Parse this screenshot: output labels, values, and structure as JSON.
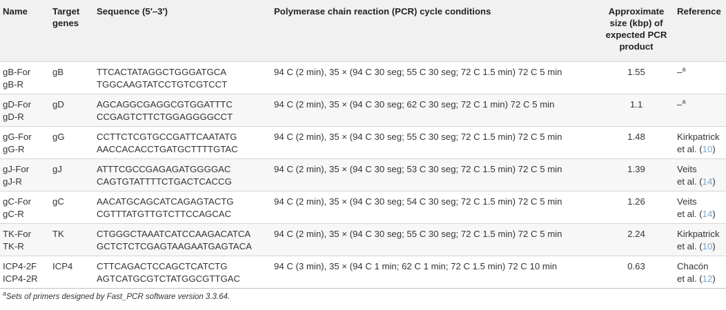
{
  "headers": [
    "Name",
    "Target genes",
    "Sequence (5′–3′)",
    "Polymerase chain reaction (PCR) cycle conditions",
    "Approximate size (kbp) of expected PCR product",
    "Reference"
  ],
  "rows": [
    {
      "names": [
        "gB-For",
        "gB-R"
      ],
      "gene": "gB",
      "seqs": [
        "TTCACTATAGGCTGGGATGCA",
        "TGGCAAGTATCCTGTCGTCCT"
      ],
      "cond": "94 C (2 min), 35 × (94 C 30 seg; 55 C 30 seg; 72 C 1.5 min) 72 C 5 min",
      "size": "1.55",
      "ref_text": "–",
      "ref_sup": "a",
      "ref_line1": "",
      "ref_line2": "",
      "ref_num": ""
    },
    {
      "names": [
        "gD-For",
        "gD-R"
      ],
      "gene": "gD",
      "seqs": [
        "AGCAGGCGAGGCGTGGATTTC",
        "CCGAGTCTTCTGGAGGGGCCT"
      ],
      "cond": "94 C (2 min), 35 × (94 C 30 seg; 62 C 30 seg; 72 C 1 min) 72 C 5 min",
      "size": "1.1",
      "ref_text": "–",
      "ref_sup": "a",
      "ref_line1": "",
      "ref_line2": "",
      "ref_num": ""
    },
    {
      "names": [
        "gG-For",
        "gG-R"
      ],
      "gene": "gG",
      "seqs": [
        "CCTTCTCGTGCCGATTCAATATG",
        "AACCACACCTGATGCTTTTGTAC"
      ],
      "cond": "94 C (2 min), 35 × (94 C 30 seg; 55 C 30 seg; 72 C 1.5 min) 72 C 5 min",
      "size": "1.48",
      "ref_text": "",
      "ref_sup": "",
      "ref_line1": "Kirkpatrick",
      "ref_line2": "et al. (",
      "ref_num": "10"
    },
    {
      "names": [
        "gJ-For",
        "gJ-R"
      ],
      "gene": "gJ",
      "seqs": [
        "ATTTCGCCGAGAGATGGGGAC",
        "CAGTGTATTTTCTGACTCACCG"
      ],
      "cond": "94 C (2 min), 35 × (94 C 30 seg; 53 C 30 seg; 72 C 1.5 min) 72 C 5 min",
      "size": "1.39",
      "ref_text": "",
      "ref_sup": "",
      "ref_line1": "Veits",
      "ref_line2": "et al. (",
      "ref_num": "14"
    },
    {
      "names": [
        "gC-For",
        "gC-R"
      ],
      "gene": "gC",
      "seqs": [
        "AACATGCAGCATCAGAGTACTG",
        "CGTTTATGTTGTCTTCCAGCAC"
      ],
      "cond": "94 C (2 min), 35 × (94 C 30 seg; 54 C 30 seg; 72 C 1.5 min) 72 C 5 min",
      "size": "1.26",
      "ref_text": "",
      "ref_sup": "",
      "ref_line1": "Veits",
      "ref_line2": "et al. (",
      "ref_num": "14"
    },
    {
      "names": [
        "TK-For",
        "TK-R"
      ],
      "gene": "TK",
      "seqs": [
        "CTGGGCTAAATCATCCAAGACATCA",
        "GCTCTCTCGAGTAAGAATGAGTACA"
      ],
      "cond": "94 C (2 min), 35 × (94 C 30 seg; 55 C 30 seg; 72 C 1.5 min) 72 C 5 min",
      "size": "2.24",
      "ref_text": "",
      "ref_sup": "",
      "ref_line1": "Kirkpatrick",
      "ref_line2": "et al. (",
      "ref_num": "10"
    },
    {
      "names": [
        "ICP4-2F",
        "ICP4-2R"
      ],
      "gene": "ICP4",
      "seqs": [
        "CTTCAGACTCCAGCTCATCTG",
        "AGTCATGCGTCTATGGCGTTGAC"
      ],
      "cond": "94 C (3 min), 35 × (94 C 1 min; 62 C 1 min; 72 C 1.5 min) 72 C 10 min",
      "size": "0.63",
      "ref_text": "",
      "ref_sup": "",
      "ref_line1": "Chacón",
      "ref_line2": "et al. (",
      "ref_num": "12"
    }
  ],
  "footnote_sup": "a",
  "footnote": "Sets of primers designed by Fast_PCR software version 3.3.64.",
  "colors": {
    "header_bg": "#f1f1f1",
    "alt_row_bg": "#f7f7f7",
    "ref_link": "#7aa6c8"
  }
}
